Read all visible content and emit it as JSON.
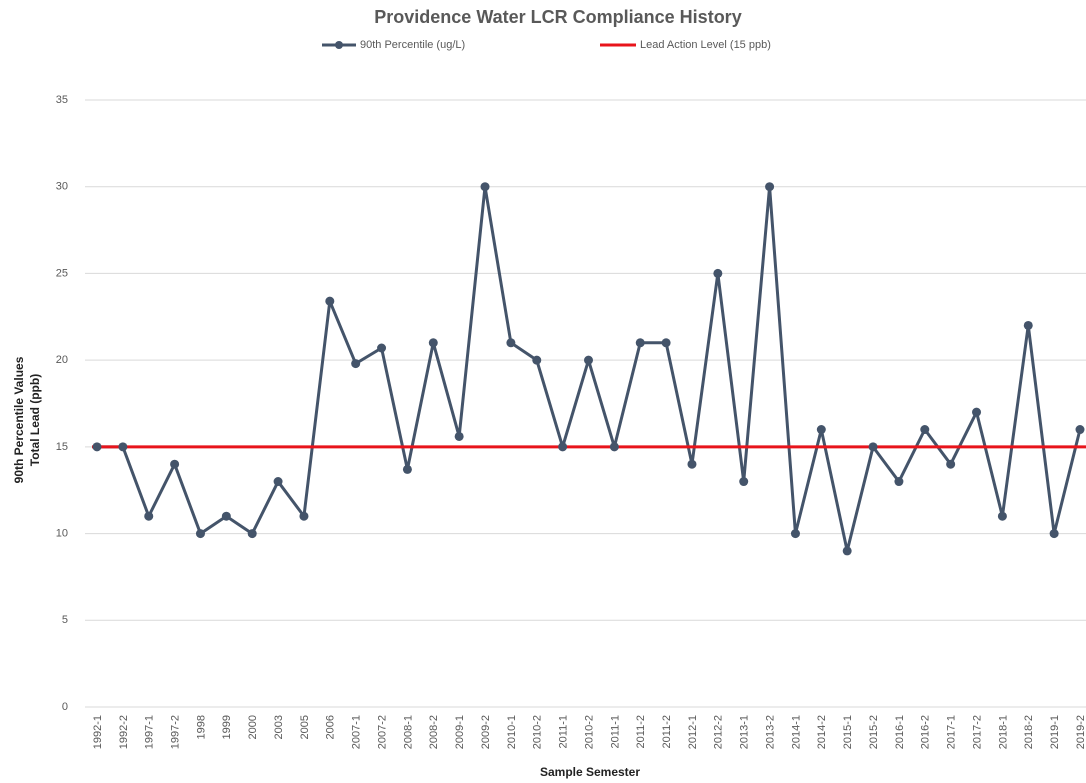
{
  "chart_data": {
    "type": "line",
    "title": "Providence Water LCR Compliance History",
    "x_label": "Sample Semester",
    "y_label": [
      "90th Percentile Values",
      "Total Lead (ppb)"
    ],
    "categories": [
      "1992-1",
      "1992-2",
      "1997-1",
      "1997-2",
      "1998",
      "1999",
      "2000",
      "2003",
      "2005",
      "2006",
      "2007-1",
      "2007-2",
      "2008-1",
      "2008-2",
      "2009-1",
      "2009-2",
      "2010-1",
      "2010-2",
      "2011-1",
      "2010-2",
      "2011-1",
      "2011-2",
      "2011-2",
      "2012-1",
      "2012-2",
      "2013-1",
      "2013-2",
      "2014-1",
      "2014-2",
      "2015-1",
      "2015-2",
      "2016-1",
      "2016-2",
      "2017-1",
      "2017-2",
      "2018-1",
      "2018-2",
      "2019-1",
      "2019-2"
    ],
    "series": [
      {
        "name": "90th Percentile (ug/L)",
        "color": "#44546a",
        "values": [
          15,
          15,
          11,
          14,
          10,
          11,
          10,
          13,
          11,
          23.4,
          19.8,
          20.7,
          13.7,
          21,
          15.6,
          30,
          21,
          20,
          15,
          20,
          15,
          21,
          21,
          14,
          25,
          13,
          30,
          10,
          16,
          9,
          15,
          13,
          16,
          14,
          17,
          11,
          22,
          10,
          16
        ]
      }
    ],
    "reference_line": {
      "name": "Lead Action Level (15 ppb)",
      "value": 15,
      "color": "#e8141b"
    },
    "ylim": [
      0,
      35
    ],
    "yticks": [
      0,
      5,
      10,
      15,
      20,
      25,
      30,
      35
    ],
    "grid": true
  }
}
